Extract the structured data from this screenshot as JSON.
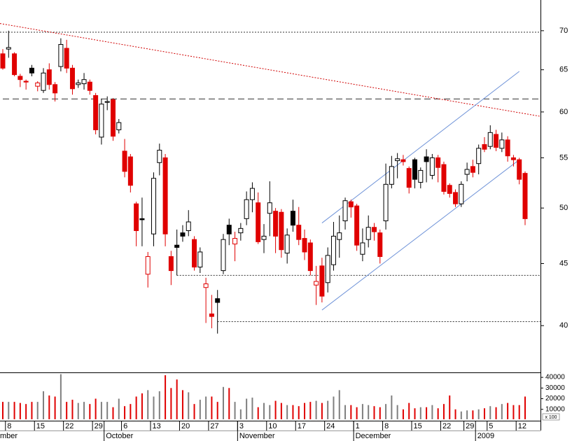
{
  "chart_data": {
    "type": "candlestick",
    "log_scale": true,
    "ylim": [
      36.7,
      74.2
    ],
    "yticks": [
      40,
      45,
      50,
      55,
      60,
      65,
      70
    ],
    "vylim": [
      0,
      44000
    ],
    "vyticks": [
      10000,
      20000,
      30000,
      40000
    ],
    "volume_unit_label": "x 100",
    "colors": {
      "down": "#e00000",
      "neutral": "#000000",
      "volume_up": "#7f7f7f",
      "volume_down": "#e00000",
      "channel": "#6f93d8",
      "trend": "#d00000"
    },
    "days": [
      "mber",
      "8",
      null,
      null,
      null,
      null,
      "15",
      null,
      null,
      null,
      null,
      "22",
      null,
      null,
      null,
      null,
      "29",
      null,
      null,
      null,
      null,
      "6",
      null,
      null,
      null,
      null,
      "13",
      null,
      null,
      null,
      null,
      "20",
      null,
      null,
      null,
      null,
      "27",
      null,
      null,
      null,
      null,
      "3",
      null,
      null,
      null,
      null,
      "10",
      null,
      null,
      null,
      null,
      "17",
      null,
      null,
      null,
      null,
      "24",
      null,
      null,
      null,
      null,
      "1",
      null,
      null,
      null,
      null,
      "8",
      null,
      null,
      null,
      null,
      "15",
      null,
      null,
      null,
      null,
      "22",
      null,
      null,
      null,
      "29",
      null,
      null,
      null,
      "5",
      null,
      null,
      null,
      null,
      "12",
      null
    ],
    "months": [
      null,
      null,
      null,
      null,
      null,
      null,
      null,
      null,
      null,
      null,
      null,
      null,
      null,
      null,
      null,
      null,
      null,
      null,
      "October",
      null,
      null,
      null,
      null,
      null,
      null,
      null,
      null,
      null,
      null,
      null,
      null,
      null,
      null,
      null,
      null,
      null,
      null,
      null,
      null,
      null,
      null,
      "November",
      null,
      null,
      null,
      null,
      null,
      null,
      null,
      null,
      null,
      null,
      null,
      null,
      null,
      null,
      null,
      null,
      null,
      null,
      null,
      "December",
      null,
      null,
      null,
      null,
      null,
      null,
      null,
      null,
      null,
      null,
      null,
      null,
      null,
      null,
      null,
      null,
      null,
      null,
      null,
      null,
      "2009",
      null,
      null,
      null,
      null,
      null,
      null,
      null
    ],
    "ohlc": [
      [
        67.0,
        67.6,
        65.0,
        65.2
      ],
      [
        67.6,
        70.0,
        66.5,
        67.8
      ],
      [
        67.0,
        67.2,
        64.2,
        64.4
      ],
      [
        64.2,
        64.5,
        62.9,
        63.8
      ],
      [
        63.6,
        63.8,
        62.6,
        63.5
      ],
      [
        65.2,
        65.6,
        64.2,
        64.6
      ],
      [
        63.0,
        63.6,
        62.4,
        63.4
      ],
      [
        62.5,
        65.2,
        62.2,
        64.6
      ],
      [
        65.0,
        65.8,
        62.6,
        63.2
      ],
      [
        63.2,
        63.5,
        61.2,
        62.2
      ],
      [
        65.4,
        69.0,
        64.8,
        68.2
      ],
      [
        67.7,
        68.8,
        64.6,
        65.2
      ],
      [
        65.2,
        65.6,
        62.0,
        62.7
      ],
      [
        63.2,
        63.8,
        62.8,
        63.4
      ],
      [
        63.3,
        64.6,
        62.6,
        63.8
      ],
      [
        63.5,
        63.8,
        62.0,
        62.5
      ],
      [
        61.9,
        62.2,
        57.5,
        58.0
      ],
      [
        57.2,
        61.5,
        56.4,
        60.9
      ],
      [
        61.1,
        61.8,
        60.2,
        61.2
      ],
      [
        61.4,
        61.6,
        56.8,
        57.3
      ],
      [
        58.0,
        59.2,
        57.6,
        58.8
      ],
      [
        55.7,
        57.0,
        53.0,
        53.6
      ],
      [
        55.1,
        55.4,
        51.5,
        52.2
      ],
      [
        50.4,
        50.6,
        46.5,
        47.9
      ],
      [
        49.0,
        51.0,
        46.5,
        48.9
      ],
      [
        44.1,
        46.0,
        43.0,
        45.6
      ],
      [
        47.6,
        53.5,
        46.5,
        52.9
      ],
      [
        54.5,
        56.5,
        53.2,
        55.8
      ],
      [
        55.0,
        55.4,
        46.5,
        47.6
      ],
      [
        45.6,
        46.1,
        43.2,
        44.4
      ],
      [
        46.6,
        48.0,
        44.0,
        46.4
      ],
      [
        47.7,
        48.4,
        46.9,
        47.4
      ],
      [
        47.9,
        49.8,
        47.4,
        48.7
      ],
      [
        47.1,
        47.4,
        44.4,
        44.7
      ],
      [
        44.7,
        46.4,
        44.2,
        46.0
      ],
      [
        43.0,
        43.8,
        40.2,
        43.3
      ],
      [
        40.9,
        42.4,
        39.8,
        40.7
      ],
      [
        42.1,
        42.8,
        39.4,
        41.8
      ],
      [
        44.4,
        47.6,
        44.1,
        47.1
      ],
      [
        48.4,
        49.0,
        46.6,
        47.6
      ],
      [
        46.7,
        47.8,
        45.2,
        47.2
      ],
      [
        47.7,
        48.6,
        47.0,
        48.1
      ],
      [
        49.0,
        51.6,
        48.4,
        50.8
      ],
      [
        50.8,
        52.5,
        49.6,
        51.9
      ],
      [
        50.5,
        51.5,
        46.7,
        46.9
      ],
      [
        47.1,
        48.5,
        45.9,
        47.4
      ],
      [
        49.5,
        52.6,
        47.4,
        50.5
      ],
      [
        49.7,
        50.0,
        45.9,
        47.4
      ],
      [
        49.6,
        49.9,
        45.5,
        46.2
      ],
      [
        45.9,
        48.1,
        45.0,
        47.5
      ],
      [
        49.7,
        50.8,
        47.8,
        48.4
      ],
      [
        48.4,
        50.1,
        46.6,
        47.1
      ],
      [
        47.2,
        48.0,
        45.3,
        46.0
      ],
      [
        46.8,
        47.1,
        44.0,
        44.4
      ],
      [
        43.2,
        44.8,
        41.6,
        43.5
      ],
      [
        44.8,
        45.5,
        41.8,
        42.3
      ],
      [
        43.4,
        46.4,
        42.6,
        45.7
      ],
      [
        44.9,
        48.7,
        44.4,
        47.4
      ],
      [
        47.1,
        49.3,
        45.5,
        47.7
      ],
      [
        48.8,
        51.0,
        48.0,
        50.7
      ],
      [
        50.6,
        50.8,
        49.1,
        50.1
      ],
      [
        50.2,
        50.4,
        46.1,
        46.6
      ],
      [
        45.8,
        48.1,
        45.2,
        46.8
      ],
      [
        47.1,
        49.3,
        46.4,
        48.2
      ],
      [
        48.2,
        48.6,
        47.0,
        47.8
      ],
      [
        47.7,
        48.0,
        45.0,
        45.6
      ],
      [
        48.8,
        54.4,
        48.0,
        52.3
      ],
      [
        52.3,
        55.2,
        51.9,
        54.1
      ],
      [
        54.7,
        55.5,
        52.9,
        54.9
      ],
      [
        54.8,
        55.3,
        54.2,
        54.6
      ],
      [
        53.9,
        54.1,
        51.4,
        52.0
      ],
      [
        54.8,
        55.0,
        51.9,
        52.8
      ],
      [
        52.5,
        54.0,
        51.9,
        53.7
      ],
      [
        55.1,
        55.9,
        52.5,
        54.6
      ],
      [
        53.2,
        55.4,
        52.8,
        55.0
      ],
      [
        55.0,
        55.3,
        52.5,
        54.0
      ],
      [
        54.3,
        54.6,
        51.3,
        51.6
      ],
      [
        52.2,
        52.4,
        51.0,
        51.4
      ],
      [
        51.5,
        51.8,
        50.1,
        50.4
      ],
      [
        50.4,
        52.6,
        50.1,
        52.3
      ],
      [
        53.3,
        54.5,
        52.6,
        53.8
      ],
      [
        54.1,
        54.8,
        53.0,
        53.5
      ],
      [
        54.4,
        56.4,
        53.3,
        56.0
      ],
      [
        56.4,
        57.2,
        55.6,
        55.9
      ],
      [
        56.2,
        58.5,
        55.9,
        57.7
      ],
      [
        57.5,
        58.0,
        55.7,
        56.1
      ],
      [
        56.0,
        57.7,
        55.6,
        56.9
      ],
      [
        56.9,
        57.3,
        54.6,
        55.2
      ],
      [
        55.0,
        55.3,
        54.1,
        54.8
      ],
      [
        54.8,
        55.0,
        52.3,
        52.8
      ],
      [
        53.4,
        53.6,
        48.4,
        49.0
      ]
    ],
    "volume": [
      17000,
      17000,
      17000,
      16000,
      15000,
      17000,
      17000,
      27000,
      23000,
      22000,
      43000,
      17000,
      19000,
      16000,
      17000,
      15000,
      20000,
      17000,
      17000,
      12000,
      20000,
      13000,
      15000,
      22000,
      25000,
      28000,
      22000,
      27000,
      42000,
      30000,
      38000,
      28000,
      26000,
      15000,
      19000,
      22000,
      22000,
      17000,
      31000,
      30000,
      17000,
      10000,
      20000,
      21000,
      12000,
      16000,
      14000,
      18000,
      16000,
      14000,
      14000,
      13000,
      16000,
      17000,
      18000,
      16000,
      18000,
      22000,
      28000,
      14000,
      14000,
      12000,
      15000,
      14000,
      13000,
      12000,
      15000,
      23000,
      14000,
      10000,
      16000,
      11000,
      12000,
      12000,
      14000,
      11000,
      15000,
      23000,
      10000,
      8000,
      9000,
      9000,
      10000,
      11000,
      13000,
      12000,
      15000,
      16000,
      14000,
      14000,
      22000
    ],
    "reference_lines": [
      {
        "value": 69.8,
        "style": "dotted",
        "from_index": 0
      },
      {
        "value": 61.5,
        "style": "dashed",
        "from_index": 0
      },
      {
        "value": 44.0,
        "style": "dotted",
        "from_index": 30
      },
      {
        "value": 40.3,
        "style": "dotted",
        "from_index": 37
      }
    ],
    "trendlines": [
      {
        "style": "trend",
        "indices": [
          0,
          90
        ],
        "values": [
          70.9,
          59.8
        ],
        "extend": true
      },
      {
        "style": "channel",
        "indices": [
          55,
          89
        ],
        "values": [
          48.6,
          64.8
        ],
        "extend": false
      },
      {
        "style": "channel",
        "indices": [
          55,
          89
        ],
        "values": [
          41.2,
          54.8
        ],
        "extend": false
      }
    ]
  }
}
